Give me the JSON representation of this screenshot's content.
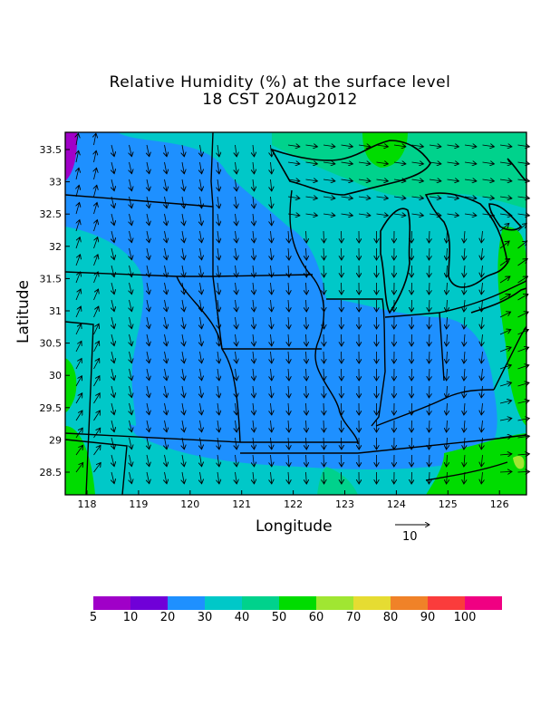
{
  "map": {
    "title_line1": "Relative Humidity (%) at the surface level",
    "title_line2": "18 CST 20Aug2012",
    "x_axis_label": "Longitude",
    "y_axis_label": "Latitude",
    "x_ticks": [
      "118",
      "119",
      "120",
      "121",
      "122",
      "123",
      "124",
      "125",
      "126"
    ],
    "y_ticks": [
      "33.5",
      "33",
      "32.5",
      "32",
      "31.5",
      "31",
      "30.5",
      "30",
      "29.5",
      "29",
      "28.5"
    ],
    "reference_vector_label": "10",
    "colorbar": {
      "labels": [
        "5",
        "10",
        "20",
        "30",
        "40",
        "50",
        "60",
        "70",
        "80",
        "90",
        "100"
      ],
      "colors": [
        "#a000c8",
        "#7000d8",
        "#1e90ff",
        "#00c8c8",
        "#00d28c",
        "#00dc00",
        "#a0e632",
        "#e6dc32",
        "#f08228",
        "#fa3c3c",
        "#f00082"
      ]
    },
    "shading_colors": {
      "dry": "#1e90ff",
      "moderate": "#00c8c8",
      "moist": "#00d28c",
      "wet": "#00dc00",
      "very_dry": "#a000c8",
      "high": "#a0e632"
    }
  }
}
